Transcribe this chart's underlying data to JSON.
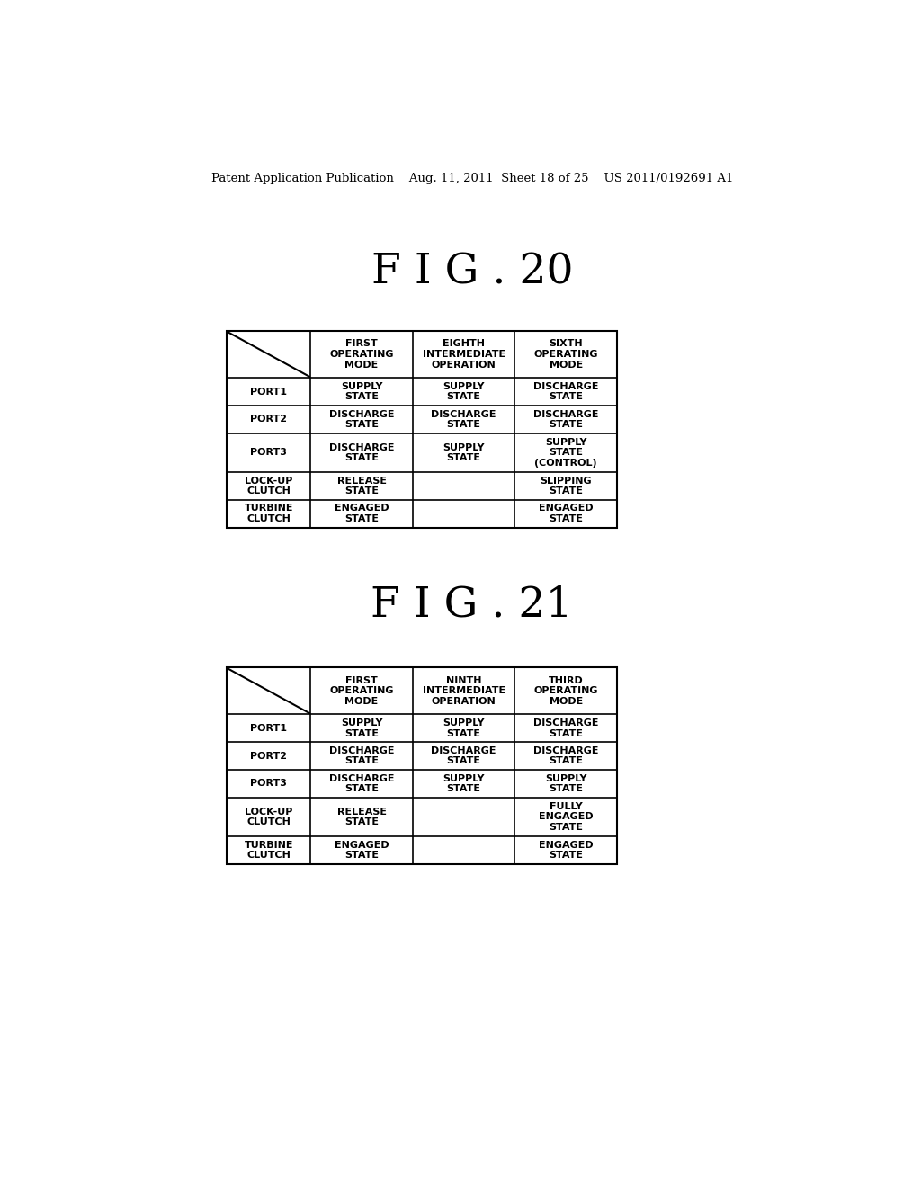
{
  "bg_color": "#ffffff",
  "header_text": "Patent Application Publication    Aug. 11, 2011  Sheet 18 of 25    US 2011/0192691 A1",
  "fig20_title": "F I G . 20",
  "fig21_title": "F I G . 21",
  "table1": {
    "col_headers": [
      "FIRST\nOPERATING\nMODE",
      "EIGHTH\nINTERMEDIATE\nOPERATION",
      "SIXTH\nOPERATING\nMODE"
    ],
    "rows": [
      {
        "label": "PORT1",
        "cells": [
          "SUPPLY\nSTATE",
          "SUPPLY\nSTATE",
          "DISCHARGE\nSTATE"
        ]
      },
      {
        "label": "PORT2",
        "cells": [
          "DISCHARGE\nSTATE",
          "DISCHARGE\nSTATE",
          "DISCHARGE\nSTATE"
        ]
      },
      {
        "label": "PORT3",
        "cells": [
          "DISCHARGE\nSTATE",
          "SUPPLY\nSTATE",
          "SUPPLY\nSTATE\n(CONTROL)"
        ]
      },
      {
        "label": "LOCK-UP\nCLUTCH",
        "cells": [
          "RELEASE\nSTATE",
          "",
          "SLIPPING\nSTATE"
        ]
      },
      {
        "label": "TURBINE\nCLUTCH",
        "cells": [
          "ENGAGED\nSTATE",
          "",
          "ENGAGED\nSTATE"
        ]
      }
    ]
  },
  "table2": {
    "col_headers": [
      "FIRST\nOPERATING\nMODE",
      "NINTH\nINTERMEDIATE\nOPERATION",
      "THIRD\nOPERATING\nMODE"
    ],
    "rows": [
      {
        "label": "PORT1",
        "cells": [
          "SUPPLY\nSTATE",
          "SUPPLY\nSTATE",
          "DISCHARGE\nSTATE"
        ]
      },
      {
        "label": "PORT2",
        "cells": [
          "DISCHARGE\nSTATE",
          "DISCHARGE\nSTATE",
          "DISCHARGE\nSTATE"
        ]
      },
      {
        "label": "PORT3",
        "cells": [
          "DISCHARGE\nSTATE",
          "SUPPLY\nSTATE",
          "SUPPLY\nSTATE"
        ]
      },
      {
        "label": "LOCK-UP\nCLUTCH",
        "cells": [
          "RELEASE\nSTATE",
          "",
          "FULLY\nENGAGED\nSTATE"
        ]
      },
      {
        "label": "TURBINE\nCLUTCH",
        "cells": [
          "ENGAGED\nSTATE",
          "",
          "ENGAGED\nSTATE"
        ]
      }
    ]
  }
}
